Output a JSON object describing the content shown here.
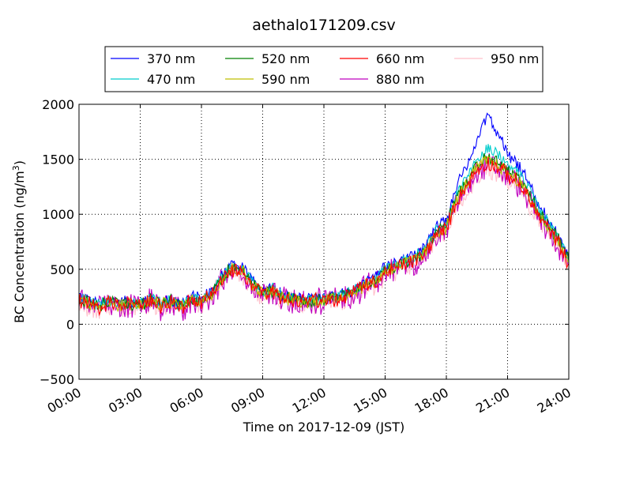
{
  "chart_data": {
    "type": "line",
    "title": "aethalo171209.csv",
    "xlabel": "Time on 2017-12-09 (JST)",
    "ylabel": "BC Concentration (ng/m",
    "ylabel_sup": "3",
    "ylabel_close": ")",
    "xlim": [
      0,
      24
    ],
    "ylim": [
      -500,
      2000
    ],
    "x_ticks": [
      {
        "value": 0,
        "label": "00:00"
      },
      {
        "value": 3,
        "label": "03:00"
      },
      {
        "value": 6,
        "label": "06:00"
      },
      {
        "value": 9,
        "label": "09:00"
      },
      {
        "value": 12,
        "label": "12:00"
      },
      {
        "value": 15,
        "label": "15:00"
      },
      {
        "value": 18,
        "label": "18:00"
      },
      {
        "value": 21,
        "label": "21:00"
      },
      {
        "value": 24,
        "label": "24:00"
      }
    ],
    "y_ticks": [
      {
        "value": -500,
        "label": "−500"
      },
      {
        "value": 0,
        "label": "0"
      },
      {
        "value": 500,
        "label": "500"
      },
      {
        "value": 1000,
        "label": "1000"
      },
      {
        "value": 1500,
        "label": "1500"
      },
      {
        "value": 2000,
        "label": "2000"
      }
    ],
    "grid": true,
    "legend_position": "top-center",
    "x_hours": [
      0,
      0.5,
      1,
      1.5,
      2,
      2.5,
      3,
      3.5,
      4,
      4.5,
      5,
      5.5,
      6,
      6.5,
      7,
      7.5,
      8,
      8.5,
      9,
      9.5,
      10,
      10.5,
      11,
      11.5,
      12,
      12.5,
      13,
      13.5,
      14,
      14.5,
      15,
      15.5,
      16,
      16.5,
      17,
      17.5,
      18,
      18.5,
      19,
      19.5,
      20,
      20.5,
      21,
      21.5,
      22,
      22.5,
      23,
      23.5,
      24
    ],
    "series": [
      {
        "name": "370 nm",
        "color": "#0000ff",
        "amp": 60,
        "values": [
          250,
          220,
          180,
          230,
          200,
          210,
          190,
          240,
          200,
          230,
          180,
          250,
          230,
          300,
          450,
          550,
          520,
          400,
          300,
          330,
          260,
          250,
          230,
          240,
          250,
          260,
          280,
          320,
          380,
          420,
          520,
          560,
          600,
          650,
          720,
          900,
          950,
          1250,
          1450,
          1650,
          1900,
          1750,
          1550,
          1450,
          1300,
          1100,
          950,
          800,
          600
        ]
      },
      {
        "name": "470 nm",
        "color": "#00cccc",
        "amp": 65,
        "values": [
          240,
          210,
          170,
          220,
          190,
          200,
          180,
          230,
          190,
          220,
          170,
          240,
          220,
          290,
          430,
          530,
          500,
          380,
          290,
          320,
          250,
          240,
          220,
          230,
          240,
          250,
          270,
          310,
          370,
          400,
          500,
          540,
          580,
          620,
          690,
          860,
          920,
          1180,
          1350,
          1500,
          1600,
          1550,
          1450,
          1380,
          1250,
          1050,
          920,
          780,
          580
        ]
      },
      {
        "name": "520 nm",
        "color": "#008000",
        "amp": 70,
        "values": [
          230,
          200,
          160,
          210,
          180,
          190,
          170,
          220,
          180,
          210,
          160,
          230,
          210,
          280,
          420,
          520,
          490,
          370,
          280,
          310,
          240,
          230,
          210,
          220,
          230,
          240,
          260,
          300,
          360,
          390,
          490,
          530,
          570,
          600,
          670,
          840,
          900,
          1150,
          1300,
          1450,
          1520,
          1480,
          1400,
          1330,
          1200,
          1020,
          900,
          760,
          570
        ]
      },
      {
        "name": "590 nm",
        "color": "#bfbf00",
        "amp": 70,
        "values": [
          225,
          195,
          155,
          205,
          175,
          185,
          165,
          215,
          175,
          205,
          155,
          225,
          205,
          275,
          410,
          510,
          480,
          360,
          275,
          305,
          235,
          225,
          205,
          215,
          225,
          235,
          255,
          295,
          355,
          385,
          480,
          520,
          560,
          590,
          660,
          830,
          880,
          1130,
          1280,
          1420,
          1490,
          1450,
          1380,
          1310,
          1180,
          1000,
          880,
          750,
          560
        ]
      },
      {
        "name": "660 nm",
        "color": "#ff0000",
        "amp": 80,
        "values": [
          220,
          190,
          150,
          200,
          170,
          180,
          160,
          210,
          170,
          200,
          150,
          220,
          200,
          270,
          400,
          500,
          470,
          350,
          270,
          300,
          230,
          220,
          200,
          210,
          220,
          230,
          250,
          290,
          350,
          380,
          470,
          510,
          550,
          580,
          650,
          820,
          870,
          1120,
          1260,
          1400,
          1470,
          1430,
          1360,
          1290,
          1160,
          990,
          870,
          740,
          550
        ]
      },
      {
        "name": "880 nm",
        "color": "#bf00bf",
        "amp": 140,
        "values": [
          210,
          180,
          140,
          190,
          160,
          170,
          150,
          200,
          160,
          190,
          140,
          210,
          190,
          260,
          390,
          490,
          460,
          340,
          260,
          290,
          220,
          210,
          190,
          200,
          210,
          220,
          240,
          280,
          340,
          370,
          460,
          500,
          540,
          570,
          640,
          800,
          850,
          1100,
          1240,
          1380,
          1450,
          1410,
          1340,
          1270,
          1140,
          970,
          850,
          720,
          540
        ]
      },
      {
        "name": "950 nm",
        "color": "#ffc0cb",
        "amp": 110,
        "values": [
          200,
          170,
          130,
          180,
          150,
          160,
          140,
          190,
          150,
          180,
          130,
          200,
          180,
          250,
          380,
          480,
          450,
          330,
          250,
          280,
          210,
          200,
          180,
          190,
          200,
          210,
          230,
          270,
          330,
          360,
          450,
          490,
          530,
          560,
          630,
          790,
          840,
          1080,
          1220,
          1350,
          1420,
          1380,
          1310,
          1250,
          1120,
          950,
          830,
          700,
          530
        ]
      }
    ]
  }
}
